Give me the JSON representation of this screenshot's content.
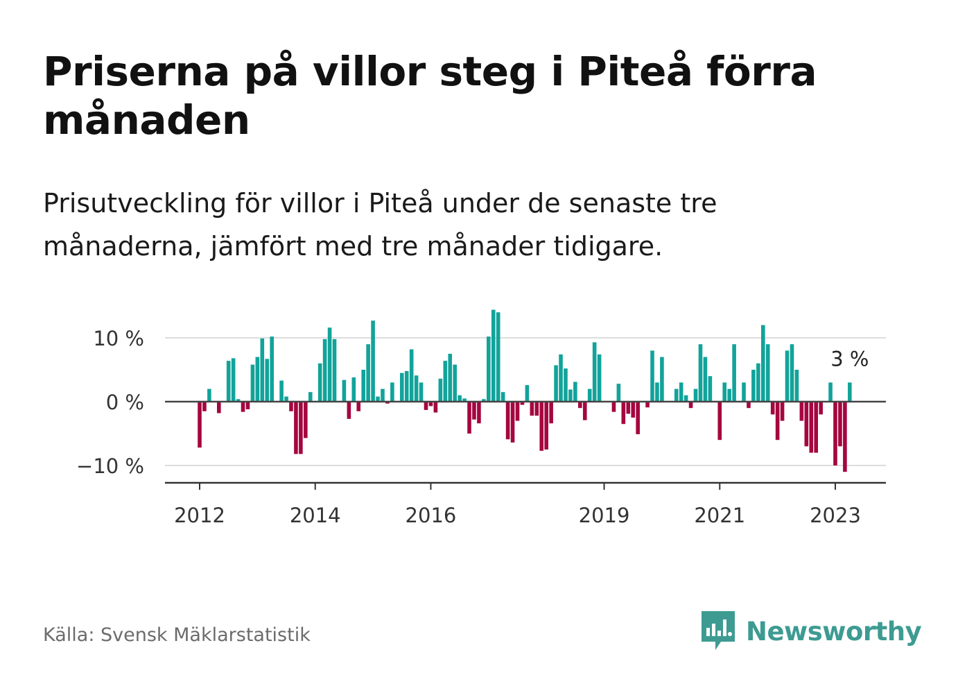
{
  "title": "Priserna på villor steg i Piteå förra månaden",
  "subtitle": "Prisutveckling för villor i Piteå under de senaste tre månaderna, jämfört med tre månader tidigare.",
  "source": "Källa: Svensk Mäklarstatistik",
  "logo": {
    "text": "Newsworthy",
    "icon": "bar-chart-speech-bubble-icon"
  },
  "colors": {
    "positive": "#12a39a",
    "negative": "#a5063f",
    "axis": "#333333",
    "grid": "#dddddd"
  },
  "chart_data": {
    "type": "bar",
    "title": "Priserna på villor steg i Piteå förra månaden",
    "subtitle": "Prisutveckling för villor i Piteå under de senaste tre månaderna, jämfört med tre månader tidigare.",
    "unit": "%",
    "x_start": "2012-01",
    "ylim": [
      -12.5,
      15
    ],
    "y_ticks": [
      10,
      0,
      -10
    ],
    "y_tick_labels": [
      "10 %",
      "0 %",
      "−10 %"
    ],
    "x_ticks": [
      "2012",
      "2014",
      "2016",
      "2019",
      "2021",
      "2023"
    ],
    "grid": true,
    "annotation": {
      "text": "3 %",
      "x": "2023-04",
      "value": 3
    },
    "values": [
      -7.2,
      -1.5,
      2.0,
      0,
      -1.8,
      0,
      6.4,
      6.8,
      0.4,
      -1.6,
      -1.2,
      5.8,
      7.0,
      9.9,
      6.7,
      10.2,
      0,
      3.3,
      0.8,
      -1.5,
      -8.2,
      -8.2,
      -5.7,
      1.5,
      0,
      6.0,
      9.8,
      11.6,
      9.8,
      0,
      3.4,
      -2.7,
      3.8,
      -1.5,
      5.0,
      9.0,
      12.7,
      0.8,
      2.0,
      -0.3,
      3.0,
      0,
      4.5,
      4.8,
      8.2,
      4.1,
      3.0,
      -1.3,
      -0.7,
      -1.7,
      3.6,
      6.4,
      7.5,
      5.8,
      1.0,
      0.5,
      -5.0,
      -2.8,
      -3.4,
      0.4,
      10.2,
      14.4,
      14.0,
      1.5,
      -5.9,
      -6.4,
      -3.0,
      -0.5,
      2.6,
      -2.2,
      -2.2,
      -7.7,
      -7.5,
      -3.4,
      5.7,
      7.4,
      5.2,
      1.9,
      3.1,
      -1.0,
      -2.9,
      2.0,
      9.3,
      7.4,
      0,
      0,
      -1.6,
      2.8,
      -3.5,
      -1.9,
      -2.5,
      -5.1,
      0,
      -0.9,
      8.0,
      3.0,
      7.0,
      0,
      0,
      2.0,
      3.0,
      1.0,
      -1.0,
      2.0,
      9.0,
      7.0,
      4.0,
      0,
      -6.0,
      3.0,
      2.0,
      9.0,
      0,
      3.0,
      -1.0,
      5.0,
      6.0,
      12.0,
      9.0,
      -2.0,
      -6.0,
      -3.0,
      8.0,
      9.0,
      5.0,
      -3.0,
      -7.0,
      -8.0,
      -8.0,
      -2.0,
      0,
      3.0,
      -10.0,
      -7.0,
      -11.0,
      3.0
    ]
  }
}
